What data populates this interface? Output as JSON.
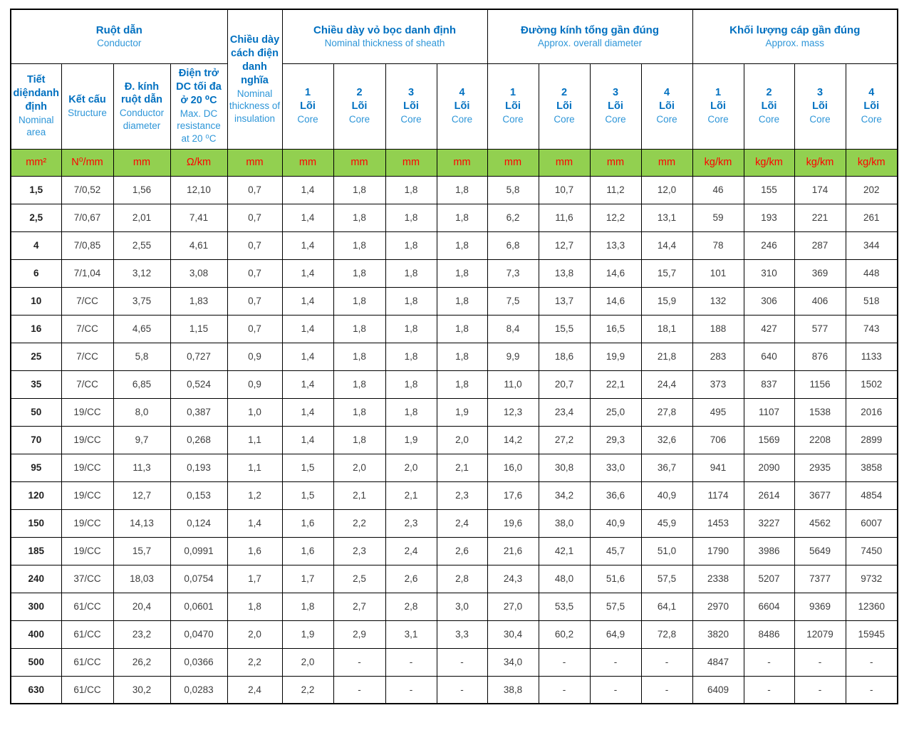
{
  "colors": {
    "header_vi_text": "#0070c0",
    "header_en_text": "#2e96d8",
    "units_background": "#92d050",
    "units_text": "#ff0000",
    "border": "#000000",
    "data_text": "#3d3d3d"
  },
  "table": {
    "groups": {
      "conductor": {
        "vi": "Ruột dẫn",
        "en": "Conductor"
      },
      "insulation": {
        "vi": "Chiều dày cách điện danh nghĩa",
        "en": "Nominal thickness of insulation"
      },
      "sheath": {
        "vi": "Chiều dày vỏ bọc danh định",
        "en": "Nominal thickness of sheath"
      },
      "diameter": {
        "vi": "Đường kính tổng gần đúng",
        "en": "Approx. overall diameter"
      },
      "mass": {
        "vi": "Khối lượng cáp gần đúng",
        "en": "Approx. mass"
      }
    },
    "subheaders": {
      "area": {
        "vi": "Tiết diệndanh định",
        "en": "Nominal area"
      },
      "structure": {
        "vi": "Kết cấu",
        "en": "Structure"
      },
      "diameter": {
        "vi": "Đ. kính ruột dẫn",
        "en": "Conductor diameter"
      },
      "resistance": {
        "vi": "Điện trở DC tối đa ở 20 ⁰C",
        "en": "Max. DC resistance at 20 ⁰C"
      }
    },
    "cores": [
      {
        "n": "1",
        "vi": "Lõi",
        "en": "Core"
      },
      {
        "n": "2",
        "vi": "Lõi",
        "en": "Core"
      },
      {
        "n": "3",
        "vi": "Lõi",
        "en": "Core"
      },
      {
        "n": "4",
        "vi": "Lõi",
        "en": "Core"
      }
    ],
    "core_group_count": 3,
    "units": [
      "mm²",
      "N⁰/mm",
      "mm",
      "Ω/km",
      "mm",
      "mm",
      "mm",
      "mm",
      "mm",
      "mm",
      "mm",
      "mm",
      "mm",
      "kg/km",
      "kg/km",
      "kg/km",
      "kg/km"
    ],
    "rows": [
      [
        "1,5",
        "7/0,52",
        "1,56",
        "12,10",
        "0,7",
        "1,4",
        "1,8",
        "1,8",
        "1,8",
        "5,8",
        "10,7",
        "11,2",
        "12,0",
        "46",
        "155",
        "174",
        "202"
      ],
      [
        "2,5",
        "7/0,67",
        "2,01",
        "7,41",
        "0,7",
        "1,4",
        "1,8",
        "1,8",
        "1,8",
        "6,2",
        "11,6",
        "12,2",
        "13,1",
        "59",
        "193",
        "221",
        "261"
      ],
      [
        "4",
        "7/0,85",
        "2,55",
        "4,61",
        "0,7",
        "1,4",
        "1,8",
        "1,8",
        "1,8",
        "6,8",
        "12,7",
        "13,3",
        "14,4",
        "78",
        "246",
        "287",
        "344"
      ],
      [
        "6",
        "7/1,04",
        "3,12",
        "3,08",
        "0,7",
        "1,4",
        "1,8",
        "1,8",
        "1,8",
        "7,3",
        "13,8",
        "14,6",
        "15,7",
        "101",
        "310",
        "369",
        "448"
      ],
      [
        "10",
        "7/CC",
        "3,75",
        "1,83",
        "0,7",
        "1,4",
        "1,8",
        "1,8",
        "1,8",
        "7,5",
        "13,7",
        "14,6",
        "15,9",
        "132",
        "306",
        "406",
        "518"
      ],
      [
        "16",
        "7/CC",
        "4,65",
        "1,15",
        "0,7",
        "1,4",
        "1,8",
        "1,8",
        "1,8",
        "8,4",
        "15,5",
        "16,5",
        "18,1",
        "188",
        "427",
        "577",
        "743"
      ],
      [
        "25",
        "7/CC",
        "5,8",
        "0,727",
        "0,9",
        "1,4",
        "1,8",
        "1,8",
        "1,8",
        "9,9",
        "18,6",
        "19,9",
        "21,8",
        "283",
        "640",
        "876",
        "1133"
      ],
      [
        "35",
        "7/CC",
        "6,85",
        "0,524",
        "0,9",
        "1,4",
        "1,8",
        "1,8",
        "1,8",
        "11,0",
        "20,7",
        "22,1",
        "24,4",
        "373",
        "837",
        "1156",
        "1502"
      ],
      [
        "50",
        "19/CC",
        "8,0",
        "0,387",
        "1,0",
        "1,4",
        "1,8",
        "1,8",
        "1,9",
        "12,3",
        "23,4",
        "25,0",
        "27,8",
        "495",
        "1107",
        "1538",
        "2016"
      ],
      [
        "70",
        "19/CC",
        "9,7",
        "0,268",
        "1,1",
        "1,4",
        "1,8",
        "1,9",
        "2,0",
        "14,2",
        "27,2",
        "29,3",
        "32,6",
        "706",
        "1569",
        "2208",
        "2899"
      ],
      [
        "95",
        "19/CC",
        "11,3",
        "0,193",
        "1,1",
        "1,5",
        "2,0",
        "2,0",
        "2,1",
        "16,0",
        "30,8",
        "33,0",
        "36,7",
        "941",
        "2090",
        "2935",
        "3858"
      ],
      [
        "120",
        "19/CC",
        "12,7",
        "0,153",
        "1,2",
        "1,5",
        "2,1",
        "2,1",
        "2,3",
        "17,6",
        "34,2",
        "36,6",
        "40,9",
        "1174",
        "2614",
        "3677",
        "4854"
      ],
      [
        "150",
        "19/CC",
        "14,13",
        "0,124",
        "1,4",
        "1,6",
        "2,2",
        "2,3",
        "2,4",
        "19,6",
        "38,0",
        "40,9",
        "45,9",
        "1453",
        "3227",
        "4562",
        "6007"
      ],
      [
        "185",
        "19/CC",
        "15,7",
        "0,0991",
        "1,6",
        "1,6",
        "2,3",
        "2,4",
        "2,6",
        "21,6",
        "42,1",
        "45,7",
        "51,0",
        "1790",
        "3986",
        "5649",
        "7450"
      ],
      [
        "240",
        "37/CC",
        "18,03",
        "0,0754",
        "1,7",
        "1,7",
        "2,5",
        "2,6",
        "2,8",
        "24,3",
        "48,0",
        "51,6",
        "57,5",
        "2338",
        "5207",
        "7377",
        "9732"
      ],
      [
        "300",
        "61/CC",
        "20,4",
        "0,0601",
        "1,8",
        "1,8",
        "2,7",
        "2,8",
        "3,0",
        "27,0",
        "53,5",
        "57,5",
        "64,1",
        "2970",
        "6604",
        "9369",
        "12360"
      ],
      [
        "400",
        "61/CC",
        "23,2",
        "0,0470",
        "2,0",
        "1,9",
        "2,9",
        "3,1",
        "3,3",
        "30,4",
        "60,2",
        "64,9",
        "72,8",
        "3820",
        "8486",
        "12079",
        "15945"
      ],
      [
        "500",
        "61/CC",
        "26,2",
        "0,0366",
        "2,2",
        "2,0",
        "-",
        "-",
        "-",
        "34,0",
        "-",
        "-",
        "-",
        "4847",
        "-",
        "-",
        "-"
      ],
      [
        "630",
        "61/CC",
        "30,2",
        "0,0283",
        "2,4",
        "2,2",
        "-",
        "-",
        "-",
        "38,8",
        "-",
        "-",
        "-",
        "6409",
        "-",
        "-",
        "-"
      ]
    ]
  }
}
